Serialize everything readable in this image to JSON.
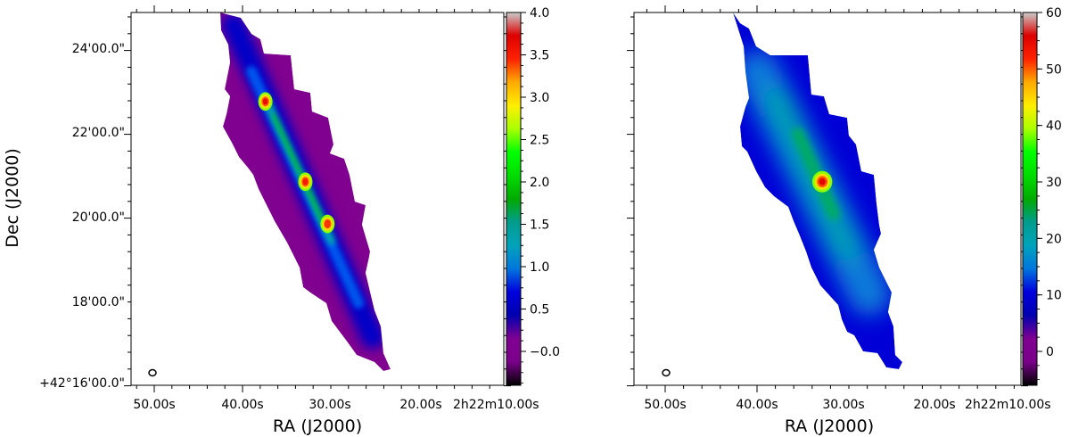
{
  "chart_data": [
    {
      "type": "heatmap",
      "title": "",
      "xlabel": "RA (J2000)",
      "ylabel": "Dec (J2000)",
      "x_tick_labels": [
        "50.00s",
        "40.00s",
        "30.00s",
        "20.00s",
        "2h22m10.00s"
      ],
      "y_tick_labels": [
        "24'00.0\"",
        "22'00.0\"",
        "20'00.0\"",
        "18'00.0\"",
        "+42°16'00.0\""
      ],
      "colorbar": {
        "min": -0.4,
        "max": 4.0,
        "ticks": [
          -0.0,
          0.5,
          1.0,
          1.5,
          2.0,
          2.5,
          3.0,
          3.5,
          4.0
        ],
        "tick_labels": [
          "−0.0",
          "0.5",
          "1.0",
          "1.5",
          "2.0",
          "2.5",
          "3.0",
          "3.5",
          "4.0"
        ],
        "colormap": "nipy_spectral"
      },
      "background_level": 0.0,
      "peaks": [
        {
          "ra_s": 37.5,
          "dec_arcmin": 22.8,
          "value": 3.6
        },
        {
          "ra_s": 33.0,
          "dec_arcmin": 20.9,
          "value": 3.5
        },
        {
          "ra_s": 30.5,
          "dec_arcmin": 19.9,
          "value": 3.4
        }
      ]
    },
    {
      "type": "heatmap",
      "title": "",
      "xlabel": "RA (J2000)",
      "ylabel": "",
      "x_tick_labels": [
        "50.00s",
        "40.00s",
        "30.00s",
        "20.00s",
        "2h22m10.00s"
      ],
      "colorbar": {
        "min": -6,
        "max": 60,
        "ticks": [
          0,
          10,
          20,
          30,
          40,
          50,
          60
        ],
        "tick_labels": [
          "0",
          "10",
          "20",
          "30",
          "40",
          "50",
          "60"
        ],
        "colormap": "nipy_spectral"
      },
      "background_level": 12,
      "peaks": [
        {
          "ra_s": 32.5,
          "dec_arcmin": 20.9,
          "value": 55
        }
      ]
    }
  ],
  "colors": {
    "cmap_stops": [
      "#000000",
      "#7a008a",
      "#7f0091",
      "#0000b0",
      "#0000dd",
      "#0077dd",
      "#00a3bb",
      "#009c8c",
      "#00aa00",
      "#00dd00",
      "#00ff00",
      "#aaff00",
      "#ffee00",
      "#ffaa00",
      "#ff2200",
      "#dd0000",
      "#cccccc"
    ]
  }
}
